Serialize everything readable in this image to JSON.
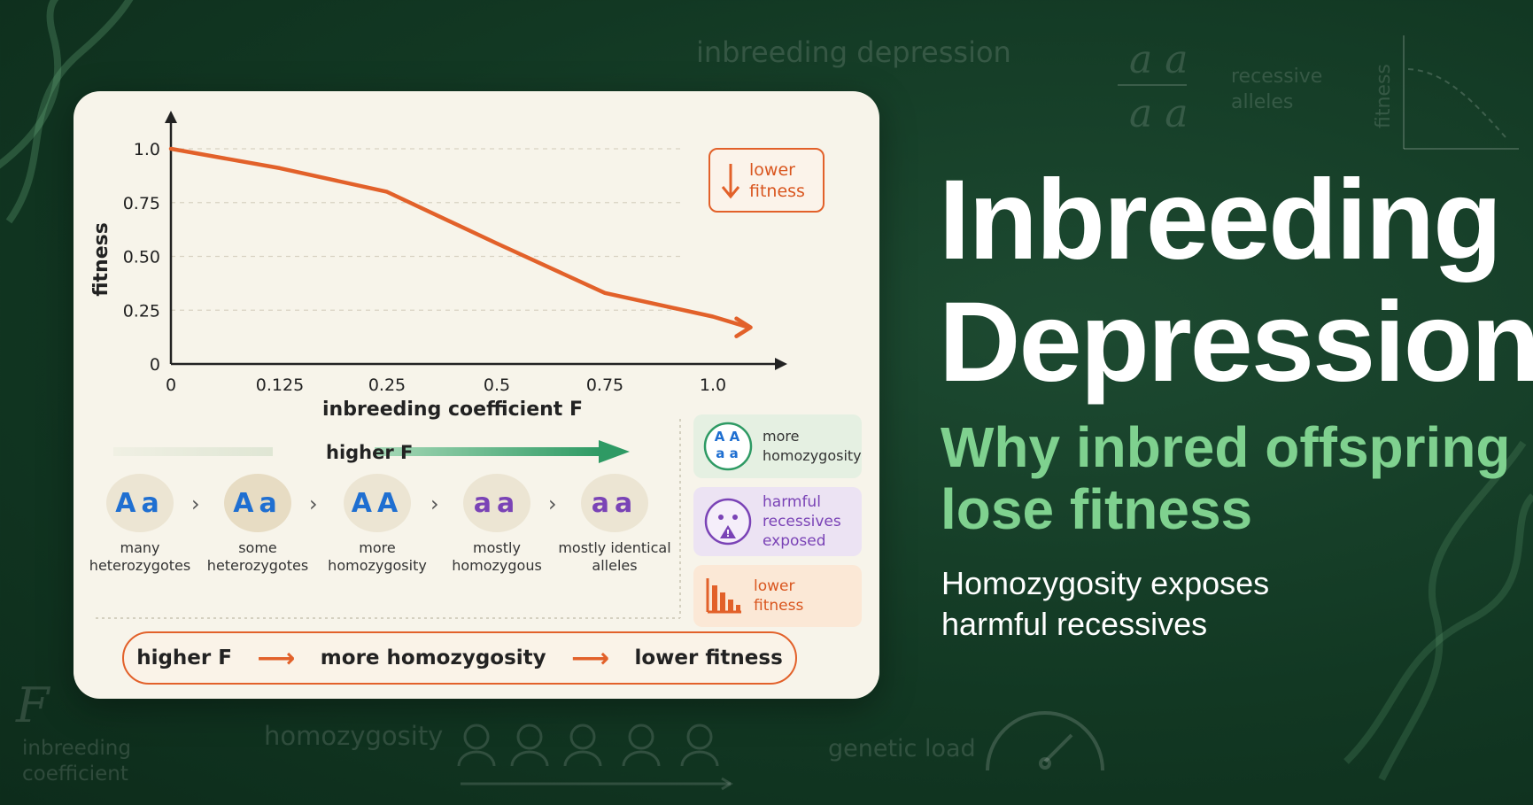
{
  "background": {
    "top_label": "inbreeding depression",
    "alleles_top": "a a",
    "alleles_bottom": "a a",
    "alleles_caption_1": "recessive",
    "alleles_caption_2": "alleles",
    "mini_axis_label": "fitness",
    "f_symbol": "F",
    "f_caption_1": "inbreeding",
    "f_caption_2": "coefficient",
    "homozygosity_label": "homozygosity",
    "genetic_load_label": "genetic load"
  },
  "chart_data": {
    "type": "line",
    "xlabel": "inbreeding coefficient F",
    "ylabel": "fitness",
    "x_ticks": [
      "0",
      "0.125",
      "0.25",
      "0.5",
      "0.75",
      "1.0"
    ],
    "y_ticks": [
      "0",
      "0.25",
      "0.50",
      "0.75",
      "1.0"
    ],
    "ylim": [
      0,
      1.0
    ],
    "series": [
      {
        "x": [
          0,
          0.125,
          0.25,
          0.5,
          0.75,
          1.0,
          1.1
        ],
        "y": [
          1.0,
          0.91,
          0.8,
          0.56,
          0.33,
          0.22,
          0.17
        ]
      }
    ],
    "grid": "dashed horizontal"
  },
  "card": {
    "badge_line1": "lower",
    "badge_line2": "fitness",
    "higher_f": "higher F",
    "genotypes": [
      {
        "a1": "A",
        "a2": "a",
        "label1": "many",
        "label2": "heterozygotes"
      },
      {
        "a1": "A",
        "a2": "a",
        "label1": "some",
        "label2": "heterozygotes"
      },
      {
        "a1": "A",
        "a2": "A",
        "label1": "more",
        "label2": "homozygosity"
      },
      {
        "a1": "a",
        "a2": "a",
        "label1": "mostly",
        "label2": "homozygous"
      },
      {
        "a1": "a",
        "a2": "a",
        "label1": "mostly identical",
        "label2": "alleles"
      }
    ],
    "side_boxes": [
      {
        "icon_top": "A A",
        "icon_bottom": "a a",
        "line1": "more",
        "line2": "homozygosity"
      },
      {
        "line1": "harmful",
        "line2": "recessives",
        "line3": "exposed"
      },
      {
        "line1": "lower",
        "line2": "fitness"
      }
    ],
    "flow": [
      "higher F",
      "more homozygosity",
      "lower fitness"
    ]
  },
  "heading": {
    "title_line1": "Inbreeding",
    "title_line2": "Depression",
    "subtitle_line1": "Why inbred offspring",
    "subtitle_line2": "lose fitness",
    "tagline_line1": "Homozygosity exposes",
    "tagline_line2": "harmful recessives"
  },
  "colors": {
    "accent_orange": "#e2612a",
    "green": "#2e9a64",
    "blue_allele": "#1f6fd1",
    "purple_allele": "#7a43b6"
  }
}
